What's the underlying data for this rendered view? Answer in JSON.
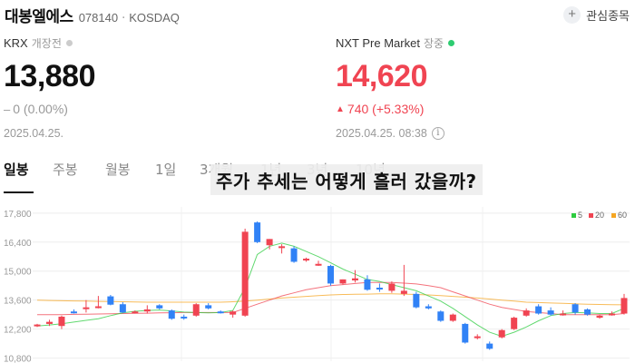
{
  "header": {
    "stock_name": "대봉엘에스",
    "stock_code": "078140",
    "separator": "·",
    "market": "KOSDAQ",
    "watch_label": "관심종목",
    "watch_icon": "+"
  },
  "krx": {
    "exchange": "KRX",
    "session": "개장전",
    "status_color": "#cccccc",
    "price": "13,880",
    "change_symbol": "‒",
    "change_text": "0 (0.00%)",
    "date": "2025.04.25."
  },
  "nxt": {
    "exchange": "NXT Pre Market",
    "session": "장중",
    "status_color": "#2ecc71",
    "price": "14,620",
    "change_symbol": "▲",
    "change_text": "740 (+5.33%)",
    "date": "2025.04.25. 08:38",
    "info_icon": "i"
  },
  "colors": {
    "up": "#f04452",
    "down": "#3182f6",
    "flat": "#999999",
    "ma5": "#2ecc40",
    "ma20": "#f04452",
    "ma60": "#f5a623"
  },
  "tabs": [
    {
      "label": "일봉",
      "active": true
    },
    {
      "label": "주봉",
      "active": false
    },
    {
      "label": "월봉",
      "active": false
    },
    {
      "label": "1일",
      "active": false
    },
    {
      "label": "3개월",
      "active": false
    },
    {
      "label": "1년",
      "active": false
    },
    {
      "label": "3년",
      "active": false
    },
    {
      "label": "10년",
      "active": false
    }
  ],
  "overlay_caption": "주가 추세는 어떻게 흘러 갔을까?",
  "chart_data": {
    "type": "candlestick",
    "y_ticks": [
      "17,800",
      "16,400",
      "15,000",
      "13,600",
      "12,200",
      "10,800"
    ],
    "y_tick_values": [
      17800,
      16400,
      15000,
      13600,
      12200,
      10800
    ],
    "ylim": [
      10650,
      18100
    ],
    "grid": true,
    "legend": [
      {
        "label": "5",
        "color": "#2ecc40"
      },
      {
        "label": "20",
        "color": "#f04452"
      },
      {
        "label": "60",
        "color": "#f5a623"
      }
    ],
    "legend_position": "top-right",
    "candles": [
      {
        "o": 12350,
        "h": 12450,
        "l": 12300,
        "c": 12420,
        "dir": "up"
      },
      {
        "o": 12450,
        "h": 12650,
        "l": 12350,
        "c": 12550,
        "dir": "up"
      },
      {
        "o": 12350,
        "h": 12850,
        "l": 12200,
        "c": 12800,
        "dir": "up"
      },
      {
        "o": 13000,
        "h": 13150,
        "l": 12950,
        "c": 13050,
        "dir": "down"
      },
      {
        "o": 13200,
        "h": 13600,
        "l": 13000,
        "c": 13250,
        "dir": "up"
      },
      {
        "o": 13250,
        "h": 13800,
        "l": 13200,
        "c": 13300,
        "dir": "up"
      },
      {
        "o": 13780,
        "h": 13850,
        "l": 13350,
        "c": 13380,
        "dir": "down"
      },
      {
        "o": 13400,
        "h": 13500,
        "l": 12980,
        "c": 13000,
        "dir": "down"
      },
      {
        "o": 13000,
        "h": 13100,
        "l": 12950,
        "c": 13050,
        "dir": "up"
      },
      {
        "o": 13050,
        "h": 13350,
        "l": 12950,
        "c": 13150,
        "dir": "up"
      },
      {
        "o": 13350,
        "h": 13400,
        "l": 13150,
        "c": 13200,
        "dir": "down"
      },
      {
        "o": 13100,
        "h": 13150,
        "l": 12650,
        "c": 12700,
        "dir": "down"
      },
      {
        "o": 12800,
        "h": 12900,
        "l": 12650,
        "c": 12750,
        "dir": "down"
      },
      {
        "o": 12850,
        "h": 13450,
        "l": 12800,
        "c": 13400,
        "dir": "up"
      },
      {
        "o": 13350,
        "h": 13450,
        "l": 13150,
        "c": 13200,
        "dir": "down"
      },
      {
        "o": 13050,
        "h": 13100,
        "l": 12950,
        "c": 13000,
        "dir": "down"
      },
      {
        "o": 13050,
        "h": 13100,
        "l": 12750,
        "c": 12900,
        "dir": "up"
      },
      {
        "o": 12850,
        "h": 17050,
        "l": 12800,
        "c": 16900,
        "dir": "up"
      },
      {
        "o": 17350,
        "h": 17400,
        "l": 16350,
        "c": 16400,
        "dir": "down"
      },
      {
        "o": 16250,
        "h": 16550,
        "l": 16050,
        "c": 16550,
        "dir": "up"
      },
      {
        "o": 16150,
        "h": 16300,
        "l": 15850,
        "c": 16200,
        "dir": "up"
      },
      {
        "o": 16100,
        "h": 16200,
        "l": 15400,
        "c": 15450,
        "dir": "down"
      },
      {
        "o": 15550,
        "h": 15650,
        "l": 15450,
        "c": 15600,
        "dir": "up"
      },
      {
        "o": 15300,
        "h": 15500,
        "l": 15250,
        "c": 15350,
        "dir": "up"
      },
      {
        "o": 15250,
        "h": 15300,
        "l": 14300,
        "c": 14400,
        "dir": "down"
      },
      {
        "o": 14400,
        "h": 14600,
        "l": 14350,
        "c": 14600,
        "dir": "up"
      },
      {
        "o": 14550,
        "h": 15050,
        "l": 14450,
        "c": 14650,
        "dir": "up"
      },
      {
        "o": 14600,
        "h": 14800,
        "l": 14050,
        "c": 14100,
        "dir": "down"
      },
      {
        "o": 14200,
        "h": 14400,
        "l": 14000,
        "c": 14150,
        "dir": "down"
      },
      {
        "o": 14400,
        "h": 14500,
        "l": 13950,
        "c": 14050,
        "dir": "up"
      },
      {
        "o": 13900,
        "h": 15300,
        "l": 13800,
        "c": 14050,
        "dir": "up"
      },
      {
        "o": 13900,
        "h": 14000,
        "l": 13200,
        "c": 13250,
        "dir": "down"
      },
      {
        "o": 13300,
        "h": 13400,
        "l": 13150,
        "c": 13200,
        "dir": "down"
      },
      {
        "o": 13050,
        "h": 13100,
        "l": 12550,
        "c": 12600,
        "dir": "down"
      },
      {
        "o": 12900,
        "h": 12950,
        "l": 12550,
        "c": 12600,
        "dir": "up"
      },
      {
        "o": 12450,
        "h": 12500,
        "l": 11500,
        "c": 11550,
        "dir": "down"
      },
      {
        "o": 11800,
        "h": 11950,
        "l": 11700,
        "c": 11850,
        "dir": "up"
      },
      {
        "o": 11500,
        "h": 11600,
        "l": 11200,
        "c": 11250,
        "dir": "down"
      },
      {
        "o": 11800,
        "h": 12200,
        "l": 11750,
        "c": 12150,
        "dir": "up"
      },
      {
        "o": 12200,
        "h": 12800,
        "l": 12150,
        "c": 12750,
        "dir": "up"
      },
      {
        "o": 12850,
        "h": 13200,
        "l": 12800,
        "c": 13100,
        "dir": "up"
      },
      {
        "o": 13300,
        "h": 13400,
        "l": 12900,
        "c": 12950,
        "dir": "down"
      },
      {
        "o": 13100,
        "h": 13250,
        "l": 12850,
        "c": 12900,
        "dir": "down"
      },
      {
        "o": 12950,
        "h": 13100,
        "l": 12850,
        "c": 12950,
        "dir": "up"
      },
      {
        "o": 13400,
        "h": 13450,
        "l": 12900,
        "c": 13000,
        "dir": "down"
      },
      {
        "o": 13150,
        "h": 13200,
        "l": 12850,
        "c": 12900,
        "dir": "down"
      },
      {
        "o": 12850,
        "h": 12900,
        "l": 12700,
        "c": 12750,
        "dir": "up"
      },
      {
        "o": 12950,
        "h": 13050,
        "l": 12850,
        "c": 12950,
        "dir": "up"
      },
      {
        "o": 12950,
        "h": 13900,
        "l": 12900,
        "c": 13700,
        "dir": "up"
      }
    ],
    "ma5": [
      12350,
      12400,
      12460,
      12540,
      12620,
      12700,
      12850,
      12980,
      13060,
      13100,
      13120,
      13080,
      13020,
      13000,
      12980,
      13000,
      13100,
      14200,
      15800,
      16200,
      16350,
      16200,
      15950,
      15700,
      15400,
      15100,
      14850,
      14600,
      14500,
      14350,
      14200,
      14050,
      13800,
      13550,
      13200,
      12800,
      12400,
      12050,
      11850,
      12050,
      12300,
      12600,
      12850,
      12950,
      13000,
      12980,
      12950,
      12950,
      13200
    ],
    "ma20": [
      12900,
      12900,
      12900,
      12910,
      12920,
      12930,
      12940,
      12950,
      12960,
      12970,
      12980,
      12990,
      13000,
      13000,
      13000,
      13000,
      13000,
      13200,
      13400,
      13600,
      13800,
      13950,
      14100,
      14200,
      14300,
      14350,
      14400,
      14450,
      14450,
      14450,
      14420,
      14380,
      14300,
      14200,
      14000,
      13800,
      13600,
      13400,
      13250,
      13150,
      13050,
      13000,
      12950,
      12900,
      12900,
      12900,
      12900,
      12900,
      12950
    ],
    "ma60": [
      13600,
      13580,
      13570,
      13560,
      13550,
      13540,
      13530,
      13520,
      13510,
      13500,
      13500,
      13500,
      13500,
      13500,
      13500,
      13500,
      13520,
      13550,
      13600,
      13650,
      13700,
      13740,
      13780,
      13820,
      13850,
      13870,
      13880,
      13890,
      13900,
      13900,
      13890,
      13870,
      13850,
      13820,
      13780,
      13740,
      13700,
      13650,
      13600,
      13550,
      13500,
      13480,
      13460,
      13440,
      13420,
      13400,
      13390,
      13380,
      13370
    ]
  }
}
